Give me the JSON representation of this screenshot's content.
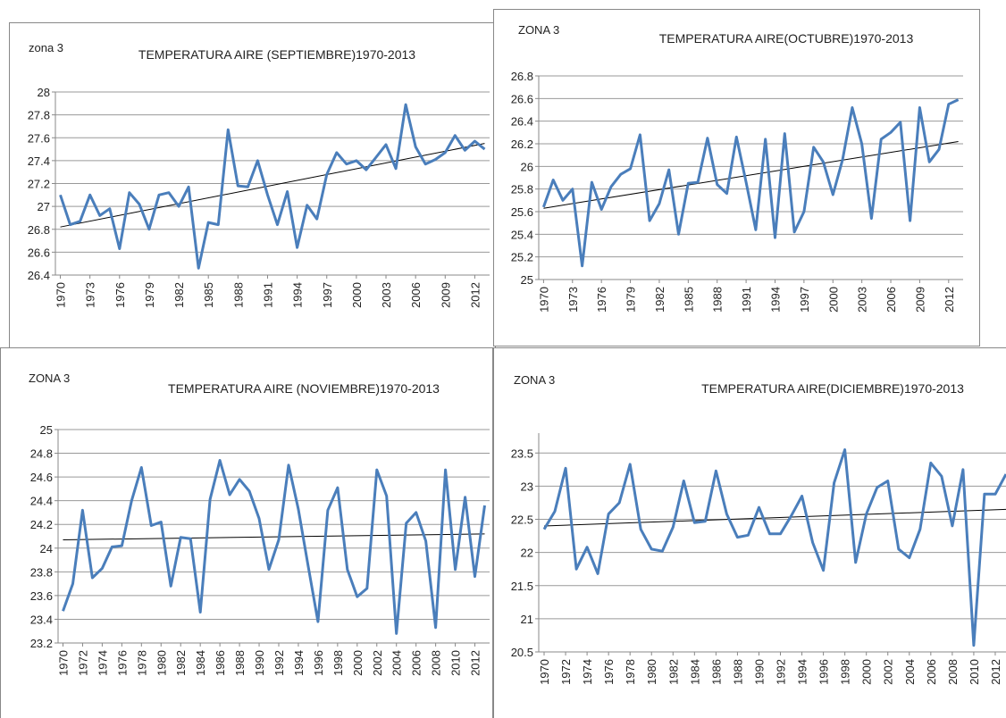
{
  "chart_data": [
    {
      "type": "line",
      "label": "zona  3",
      "title": "TEMPERATURA  AIRE  (SEPTIEMBRE)1970-2013",
      "x": [
        1970,
        1971,
        1972,
        1973,
        1974,
        1975,
        1976,
        1977,
        1978,
        1979,
        1980,
        1981,
        1982,
        1983,
        1984,
        1985,
        1986,
        1987,
        1988,
        1989,
        1990,
        1991,
        1992,
        1993,
        1994,
        1995,
        1996,
        1997,
        1998,
        1999,
        2000,
        2001,
        2002,
        2003,
        2004,
        2005,
        2006,
        2007,
        2008,
        2009,
        2010,
        2011,
        2012,
        2013
      ],
      "series": [
        {
          "color": "#4a7ebb",
          "values": [
            27.1,
            26.84,
            26.87,
            27.1,
            26.92,
            26.98,
            26.63,
            27.12,
            27.02,
            26.8,
            27.1,
            27.12,
            27.0,
            27.17,
            26.46,
            26.86,
            26.84,
            27.67,
            27.18,
            27.17,
            27.4,
            27.1,
            26.84,
            27.13,
            26.64,
            27.01,
            26.89,
            27.28,
            27.47,
            27.37,
            27.4,
            27.32,
            27.43,
            27.54,
            27.33,
            27.89,
            27.52,
            27.37,
            27.41,
            27.47,
            27.62,
            27.49,
            27.57,
            27.5
          ]
        }
      ],
      "trendline": [
        26.82,
        27.55
      ],
      "xlim": [
        1969.5,
        2013.5
      ],
      "xticks": [
        1970,
        1973,
        1976,
        1979,
        1982,
        1985,
        1988,
        1991,
        1994,
        1997,
        2000,
        2003,
        2006,
        2009,
        2012
      ],
      "ylim": [
        26.4,
        28
      ],
      "yticks": [
        26.4,
        26.6,
        26.8,
        27,
        27.2,
        27.4,
        27.6,
        27.8,
        28
      ],
      "grid": true
    },
    {
      "type": "line",
      "label": "ZONA  3",
      "title": "TEMPERATURA AIRE(OCTUBRE)1970-2013",
      "x": [
        1970,
        1971,
        1972,
        1973,
        1974,
        1975,
        1976,
        1977,
        1978,
        1979,
        1980,
        1981,
        1982,
        1983,
        1984,
        1985,
        1986,
        1987,
        1988,
        1989,
        1990,
        1991,
        1992,
        1993,
        1994,
        1995,
        1996,
        1997,
        1998,
        1999,
        2000,
        2001,
        2002,
        2003,
        2004,
        2005,
        2006,
        2007,
        2008,
        2009,
        2010,
        2011,
        2012,
        2013
      ],
      "series": [
        {
          "color": "#4a7ebb",
          "values": [
            25.64,
            25.88,
            25.7,
            25.8,
            25.12,
            25.86,
            25.62,
            25.82,
            25.93,
            25.98,
            26.28,
            25.52,
            25.67,
            25.97,
            25.4,
            25.85,
            25.86,
            26.25,
            25.84,
            25.76,
            26.26,
            25.86,
            25.44,
            26.24,
            25.37,
            26.29,
            25.42,
            25.6,
            26.17,
            26.04,
            25.75,
            26.06,
            26.52,
            26.2,
            25.54,
            26.24,
            26.3,
            26.39,
            25.52,
            26.52,
            26.04,
            26.15,
            26.55,
            26.59
          ]
        }
      ],
      "trendline": [
        25.63,
        26.22
      ],
      "xlim": [
        1969.5,
        2013.5
      ],
      "xticks": [
        1970,
        1973,
        1976,
        1979,
        1982,
        1985,
        1988,
        1991,
        1994,
        1997,
        2000,
        2003,
        2006,
        2009,
        2012
      ],
      "ylim": [
        25,
        26.8
      ],
      "yticks": [
        25,
        25.2,
        25.4,
        25.6,
        25.8,
        26,
        26.2,
        26.4,
        26.6,
        26.8
      ],
      "grid": true
    },
    {
      "type": "line",
      "label": "ZONA 3",
      "title": "TEMPERATURA  AIRE  (NOVIEMBRE)1970-2013",
      "x": [
        1970,
        1971,
        1972,
        1973,
        1974,
        1975,
        1976,
        1977,
        1978,
        1979,
        1980,
        1981,
        1982,
        1983,
        1984,
        1985,
        1986,
        1987,
        1988,
        1989,
        1990,
        1991,
        1992,
        1993,
        1994,
        1995,
        1996,
        1997,
        1998,
        1999,
        2000,
        2001,
        2002,
        2003,
        2004,
        2005,
        2006,
        2007,
        2008,
        2009,
        2010,
        2011,
        2012,
        2013
      ],
      "series": [
        {
          "color": "#4a7ebb",
          "values": [
            23.47,
            23.7,
            24.32,
            23.75,
            23.83,
            24.01,
            24.02,
            24.4,
            24.68,
            24.19,
            24.22,
            23.68,
            24.09,
            24.08,
            23.46,
            24.41,
            24.74,
            24.45,
            24.58,
            24.48,
            24.25,
            23.82,
            24.07,
            24.7,
            24.33,
            23.85,
            23.38,
            24.32,
            24.51,
            23.82,
            23.59,
            23.66,
            24.66,
            24.44,
            23.28,
            24.21,
            24.3,
            24.06,
            23.33,
            24.66,
            23.82,
            24.43,
            23.76,
            24.36
          ]
        }
      ],
      "trendline": [
        24.07,
        24.12
      ],
      "xlim": [
        1969.5,
        2013.5
      ],
      "xticks": [
        1970,
        1972,
        1974,
        1976,
        1978,
        1980,
        1982,
        1984,
        1986,
        1988,
        1990,
        1992,
        1994,
        1996,
        1998,
        2000,
        2002,
        2004,
        2006,
        2008,
        2010,
        2012
      ],
      "ylim": [
        23.2,
        25
      ],
      "yticks": [
        23.2,
        23.4,
        23.6,
        23.8,
        24,
        24.2,
        24.4,
        24.6,
        24.8,
        25
      ],
      "grid": true
    },
    {
      "type": "line",
      "label": "ZONA  3",
      "title": "TEMPERATURA  AIRE(DICIEMBRE)1970-2013",
      "x": [
        1970,
        1971,
        1972,
        1973,
        1974,
        1975,
        1976,
        1977,
        1978,
        1979,
        1980,
        1981,
        1982,
        1983,
        1984,
        1985,
        1986,
        1987,
        1988,
        1989,
        1990,
        1991,
        1992,
        1993,
        1994,
        1995,
        1996,
        1997,
        1998,
        1999,
        2000,
        2001,
        2002,
        2003,
        2004,
        2005,
        2006,
        2007,
        2008,
        2009,
        2010,
        2011,
        2012,
        2013
      ],
      "series": [
        {
          "color": "#4a7ebb",
          "values": [
            22.35,
            22.62,
            23.27,
            21.75,
            22.08,
            21.68,
            22.58,
            22.75,
            23.33,
            22.35,
            22.05,
            22.02,
            22.38,
            23.08,
            22.45,
            22.47,
            23.23,
            22.58,
            22.23,
            22.26,
            22.68,
            22.28,
            22.28,
            22.55,
            22.85,
            22.15,
            21.73,
            23.05,
            23.55,
            21.85,
            22.58,
            22.98,
            23.08,
            22.05,
            21.92,
            22.35,
            23.35,
            23.15,
            22.4,
            23.25,
            20.6,
            22.88,
            22.88,
            23.18
          ]
        }
      ],
      "trendline": [
        22.4,
        22.65
      ],
      "xlim": [
        1969.5,
        2013.5
      ],
      "xticks": [
        1970,
        1972,
        1974,
        1976,
        1978,
        1980,
        1982,
        1984,
        1986,
        1988,
        1990,
        1992,
        1994,
        1996,
        1998,
        2000,
        2002,
        2004,
        2006,
        2008,
        2010,
        2012
      ],
      "ylim": [
        20.5,
        23.8
      ],
      "yticks": [
        20.5,
        21,
        21.5,
        22,
        22.5,
        23,
        23.5
      ],
      "grid": true
    }
  ]
}
